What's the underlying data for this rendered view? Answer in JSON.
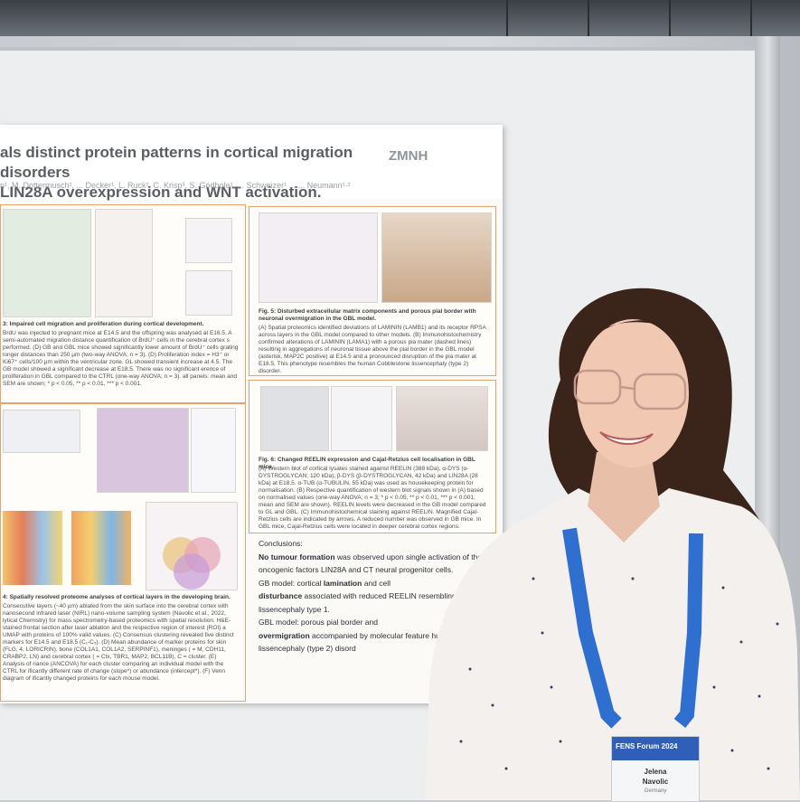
{
  "poster": {
    "title": "als distinct protein patterns in cortical migration disorders\n LIN28A overexpression and WNT activation.",
    "authors": "n¹, M. Dottermusch¹, ... Decker¹, L. Ruck², C. Krisp³, S. Godbole¹, ... Schweizer¹ ... ... Neumann¹·²",
    "logo": "ZMNH",
    "fig3_caption": "3: Impaired cell migration and proliferation during cortical development.",
    "fig3_text": "BrdU was injected to pregnant mice at E14.5 and the offspring was analysed at E16.5. A semi-automated migration distance quantification of BrdU⁺ cells in the cerebral cortex s performed. (D) GB and GBL mice showed significantly lower amount of BrdU⁺ cells grating longer distances than 250 µm (two-way ANOVA; n = 3). (D) Proliferation index = H3⁺ or Ki67⁺ cells/100 µm within the ventricular zone. GL showed transient increase at 4.5. The GB model showed a significant decrease at E18.5. There was no significant erence of proliferation in GBL compared to the CTRL (one-way ANOVA; n = 3). all panels: mean and SEM are shown; * p < 0.05, ** p < 0.01, *** p < 0.001.",
    "fig4_caption": "4: Spatially resolved proteome analyses of cortical layers in the developing brain.",
    "fig4_text": "Consecutive layers (~40 µm) ablated from the skin surface into the cerebral cortex with nanosecond infrared laser (NIRL) nano-volume sampling system (Navolic et al., 2022, lytical Chemistry) for mass spectrometry-based proteomics with spatial resolution. H&E-stained frontal section after laser ablation and the respective region of interest (ROI) a UMAP with proteins of 100% valid values. (C) Consensus clustering revealed five distinct markers for E14.5 and E18.5 (C₁-C₅). (D) Mean abundance of marker proteins for skin (FLG, 4, LORICRIN), bone (COL1A1, COL1A2, SERPINF1), meninges ( = M, CDH11, CRABP2, LN) and cerebral cortex ( = Ctx, TBR1, MAP2, BCL11B), C = cluster. (E) Analysis of riance (ANCOVA) for each cluster comparing an individual model with the CTRL for ificantly different rate of change (slope*) or abundance (intercept*). (F) Venn diagram of ificantly changed proteins for each mouse model.",
    "fig5_caption": "Fig. 5: Disturbed extracellular matrix components and porous pial border with neuronal overmigration in the GBL model.",
    "fig5_text": "(A) Spatial proteomics identified deviations of LAMININ (LAMB1) and its receptor RPSA across layers in the GBL model compared to other models. (B) Immunohistochemistry confirmed alterations of LAMININ (LAMA1) with a porous pia mater (dashed lines) resulting in aggregations of neuronal tissue above the pial border in the GBL model (asterisk, MAP2C positive) at E14.5 and a pronounced disruption of the pia mater at E18.5. This phenotype resembles the human Cobblestone lissencephaly (type 2) disorder.",
    "fig6_caption": "Fig. 6: Changed REELIN expression and Cajal-Retzius cell localisation in GBL mice.",
    "fig6_text": "(A) Western blot of cortical lysates stained against REELIN (388 kDa), α-DYS (α-DYSTROGLYCAN; 120 kDa), β-DYS (β-DYSTROGLYCAN, 42 kDa) and LIN28A (28 kDa) at E18.5. α-TUB (α-TUBULIN, 55 kDa) was used as housekeeping protein for normalisation. (B) Respective quantification of western blot signals shown in (A) based on normalised values (one-way ANOVA; n = 3; * p < 0.05, ** p < 0.01, *** p < 0.001; mean and SEM are shown). REELIN levels were decreased in the GB model compared to GL and GBL. (C) Immunohistochemical staining against REELIN. Magnified Cajal-Retzius cells are indicated by arrows. A reduced number was observed in GB mice. In GBL mice, Cajal-Retzius cells were located in deeper cerebral cortex regions.",
    "conclusions_title": "Conclusions:",
    "conclusion_1_bold": "No tumour formation",
    "conclusion_1": " was observed upon single activation of the oncogenic factors LIN28A and CT neural progenitor cells.",
    "conclusion_2_a": "GB model: cortical ",
    "conclusion_2_bold": "lamination",
    "conclusion_2_b": " and cell",
    "conclusion_2_bold2": "disturbance",
    "conclusion_2_c": " associated with reduced REELIN resembling human lissencephaly type 1.",
    "conclusion_3_a": "GBL model: porous pial border and",
    "conclusion_3_bold": "overmigration",
    "conclusion_3_b": " accompanied by molecular feature human Cobblestone lissencephaly (type 2) disord"
  },
  "badge": {
    "event": "FENS Forum 2024",
    "first_name": "Jelena",
    "last_name": "Navolic",
    "country": "Germany",
    "lanyard_text": "FENS Forum"
  },
  "colors": {
    "panel_border": "#e4a373",
    "lanyard": "#2f6fd0",
    "shirt": "#f3f0ee",
    "hair": "#3b2419"
  }
}
